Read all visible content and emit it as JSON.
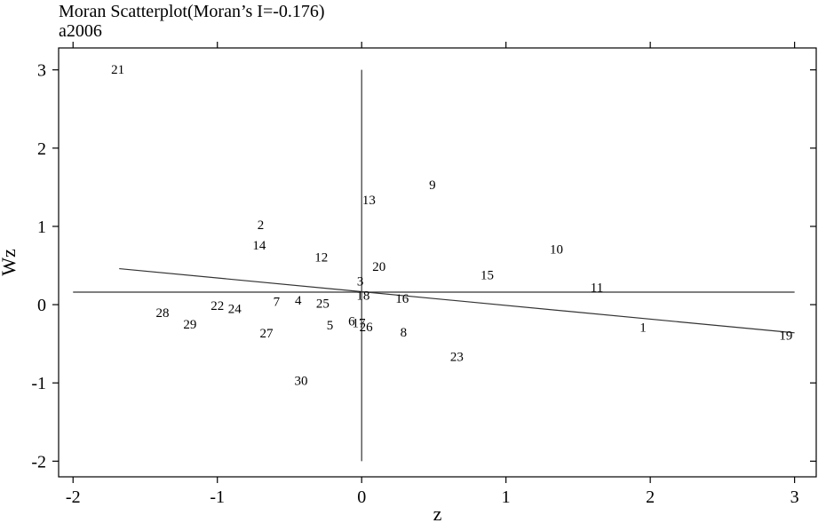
{
  "chart_data": {
    "type": "scatter",
    "title": "Moran Scatterplot(Moran’s I=-0.176)",
    "subtitle": "a2006",
    "xlabel": "z",
    "ylabel": "Wz",
    "xlim": [
      -2.1,
      3.15
    ],
    "ylim": [
      -2.2,
      3.28
    ],
    "xticks": [
      -2,
      -1,
      0,
      1,
      2,
      3
    ],
    "xtick_labels": [
      "-2",
      "-1",
      "0",
      "1",
      "2",
      "3"
    ],
    "yticks": [
      -2,
      -1,
      0,
      1,
      2,
      3
    ],
    "ytick_labels": [
      "-2",
      "-1",
      "0",
      "1",
      "2",
      "3"
    ],
    "grid": false,
    "reference_lines": {
      "vertical_x": 0,
      "vertical_y_range": [
        -2,
        3
      ],
      "horizontal_y": 0.16,
      "horizontal_x_range": [
        -2,
        3
      ]
    },
    "fit_line": {
      "x": [
        -1.68,
        3.0
      ],
      "y": [
        0.46,
        -0.36
      ]
    },
    "points": [
      {
        "label": "1",
        "x": 1.95,
        "y": -0.29
      },
      {
        "label": "2",
        "x": -0.7,
        "y": 1.02
      },
      {
        "label": "3",
        "x": -0.01,
        "y": 0.3
      },
      {
        "label": "4",
        "x": -0.44,
        "y": 0.06
      },
      {
        "label": "5",
        "x": -0.22,
        "y": -0.26
      },
      {
        "label": "6",
        "x": -0.07,
        "y": -0.21
      },
      {
        "label": "7",
        "x": -0.59,
        "y": 0.04
      },
      {
        "label": "8",
        "x": 0.29,
        "y": -0.35
      },
      {
        "label": "9",
        "x": 0.49,
        "y": 1.53
      },
      {
        "label": "10",
        "x": 1.35,
        "y": 0.71
      },
      {
        "label": "11",
        "x": 1.63,
        "y": 0.22
      },
      {
        "label": "12",
        "x": -0.28,
        "y": 0.61
      },
      {
        "label": "13",
        "x": 0.05,
        "y": 1.34
      },
      {
        "label": "14",
        "x": -0.71,
        "y": 0.76
      },
      {
        "label": "15",
        "x": 0.87,
        "y": 0.38
      },
      {
        "label": "16",
        "x": 0.28,
        "y": 0.08
      },
      {
        "label": "17",
        "x": -0.02,
        "y": -0.23
      },
      {
        "label": "18",
        "x": 0.01,
        "y": 0.12
      },
      {
        "label": "19",
        "x": 2.94,
        "y": -0.39
      },
      {
        "label": "20",
        "x": 0.12,
        "y": 0.49
      },
      {
        "label": "21",
        "x": -1.69,
        "y": 3.01
      },
      {
        "label": "22",
        "x": -1.0,
        "y": -0.01
      },
      {
        "label": "23",
        "x": 0.66,
        "y": -0.66
      },
      {
        "label": "24",
        "x": -0.88,
        "y": -0.05
      },
      {
        "label": "25",
        "x": -0.27,
        "y": 0.02
      },
      {
        "label": "26",
        "x": 0.03,
        "y": -0.28
      },
      {
        "label": "27",
        "x": -0.66,
        "y": -0.36
      },
      {
        "label": "28",
        "x": -1.38,
        "y": -0.1
      },
      {
        "label": "29",
        "x": -1.19,
        "y": -0.25
      },
      {
        "label": "30",
        "x": -0.42,
        "y": -0.97
      }
    ]
  }
}
